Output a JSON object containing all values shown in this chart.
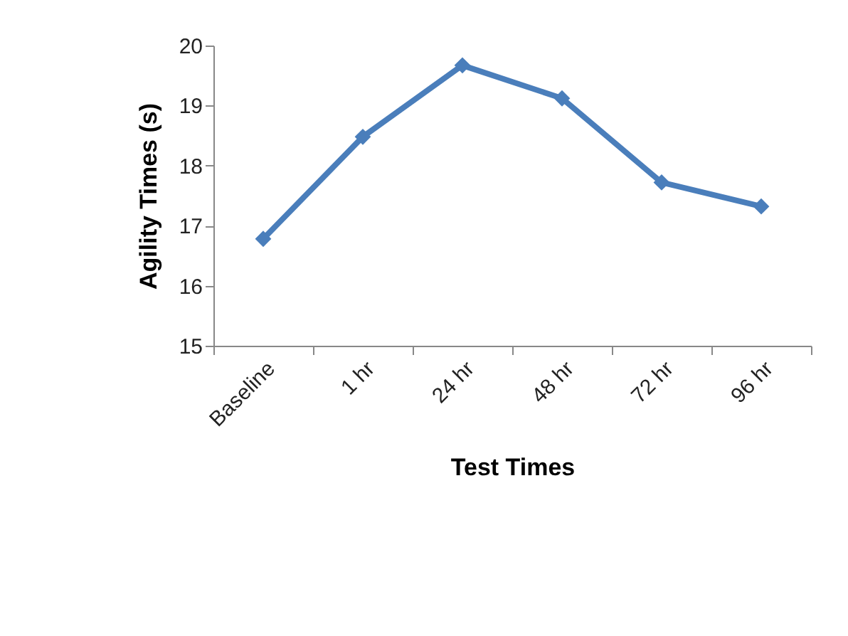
{
  "chart_data": {
    "type": "line",
    "xlabel": "Test Times",
    "ylabel": "Agility Times (s)",
    "categories": [
      "Baseline",
      "1 hr",
      "24 hr",
      "48 hr",
      "72 hr",
      "96 hr"
    ],
    "series": [
      {
        "color": "#4a7ebb",
        "values": [
          16.78,
          18.48,
          19.67,
          19.12,
          17.72,
          17.32
        ]
      }
    ],
    "ylim": [
      15,
      20
    ],
    "yticks": [
      15,
      16,
      17,
      18,
      19,
      20
    ],
    "grid": false,
    "legend": false,
    "marker": "diamond",
    "line_style": "solid"
  }
}
